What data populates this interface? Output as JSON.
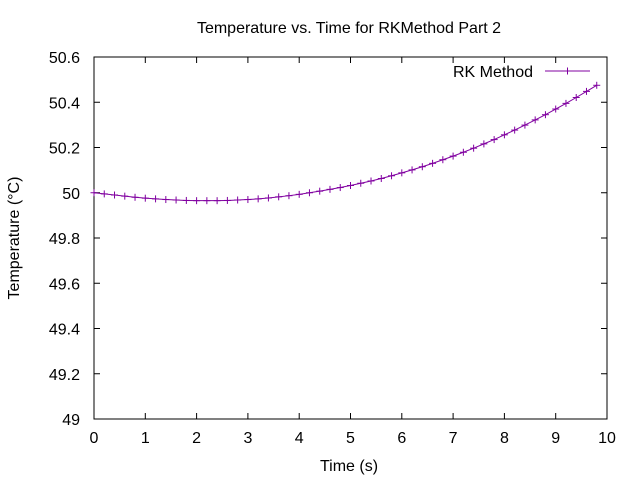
{
  "chart_data": {
    "type": "line",
    "title": "Temperature vs. Time for RKMethod Part 2",
    "xlabel": "Time (s)",
    "ylabel": "Temperature (°C)",
    "xlim": [
      0,
      10
    ],
    "ylim": [
      49,
      50.6
    ],
    "xticks": [
      0,
      1,
      2,
      3,
      4,
      5,
      6,
      7,
      8,
      9,
      10
    ],
    "yticks": [
      49,
      49.2,
      49.4,
      49.6,
      49.8,
      50,
      50.2,
      50.4,
      50.6
    ],
    "xtick_labels": [
      "0",
      "1",
      "2",
      "3",
      "4",
      "5",
      "6",
      "7",
      "8",
      "9",
      "10"
    ],
    "ytick_labels": [
      "49",
      "49.2",
      "49.4",
      "49.6",
      "49.8",
      "50",
      "50.2",
      "50.4",
      "50.6"
    ],
    "grid": false,
    "legend": "top-right",
    "series": [
      {
        "name": "RK Method",
        "color": "#8000a0",
        "marker": "plus",
        "x": [
          0,
          0.2,
          0.4,
          0.6,
          0.8,
          1.0,
          1.2,
          1.4,
          1.6,
          1.8,
          2.0,
          2.2,
          2.4,
          2.6,
          2.8,
          3.0,
          3.2,
          3.4,
          3.6,
          3.8,
          4.0,
          4.2,
          4.4,
          4.6,
          4.8,
          5.0,
          5.2,
          5.4,
          5.6,
          5.8,
          6.0,
          6.2,
          6.4,
          6.6,
          6.8,
          7.0,
          7.2,
          7.4,
          7.6,
          7.8,
          8.0,
          8.2,
          8.4,
          8.6,
          8.8,
          9.0,
          9.2,
          9.4,
          9.6,
          9.8
        ],
        "y": [
          50.0,
          49.995,
          49.99,
          49.985,
          49.98,
          49.976,
          49.973,
          49.97,
          49.968,
          49.966,
          49.965,
          49.965,
          49.965,
          49.966,
          49.968,
          49.97,
          49.973,
          49.977,
          49.982,
          49.987,
          49.993,
          50.0,
          50.007,
          50.015,
          50.023,
          50.032,
          50.042,
          50.052,
          50.063,
          50.075,
          50.088,
          50.101,
          50.115,
          50.13,
          50.146,
          50.162,
          50.179,
          50.197,
          50.216,
          50.235,
          50.256,
          50.277,
          50.299,
          50.322,
          50.345,
          50.37,
          50.395,
          50.421,
          50.448,
          50.475
        ]
      }
    ]
  }
}
